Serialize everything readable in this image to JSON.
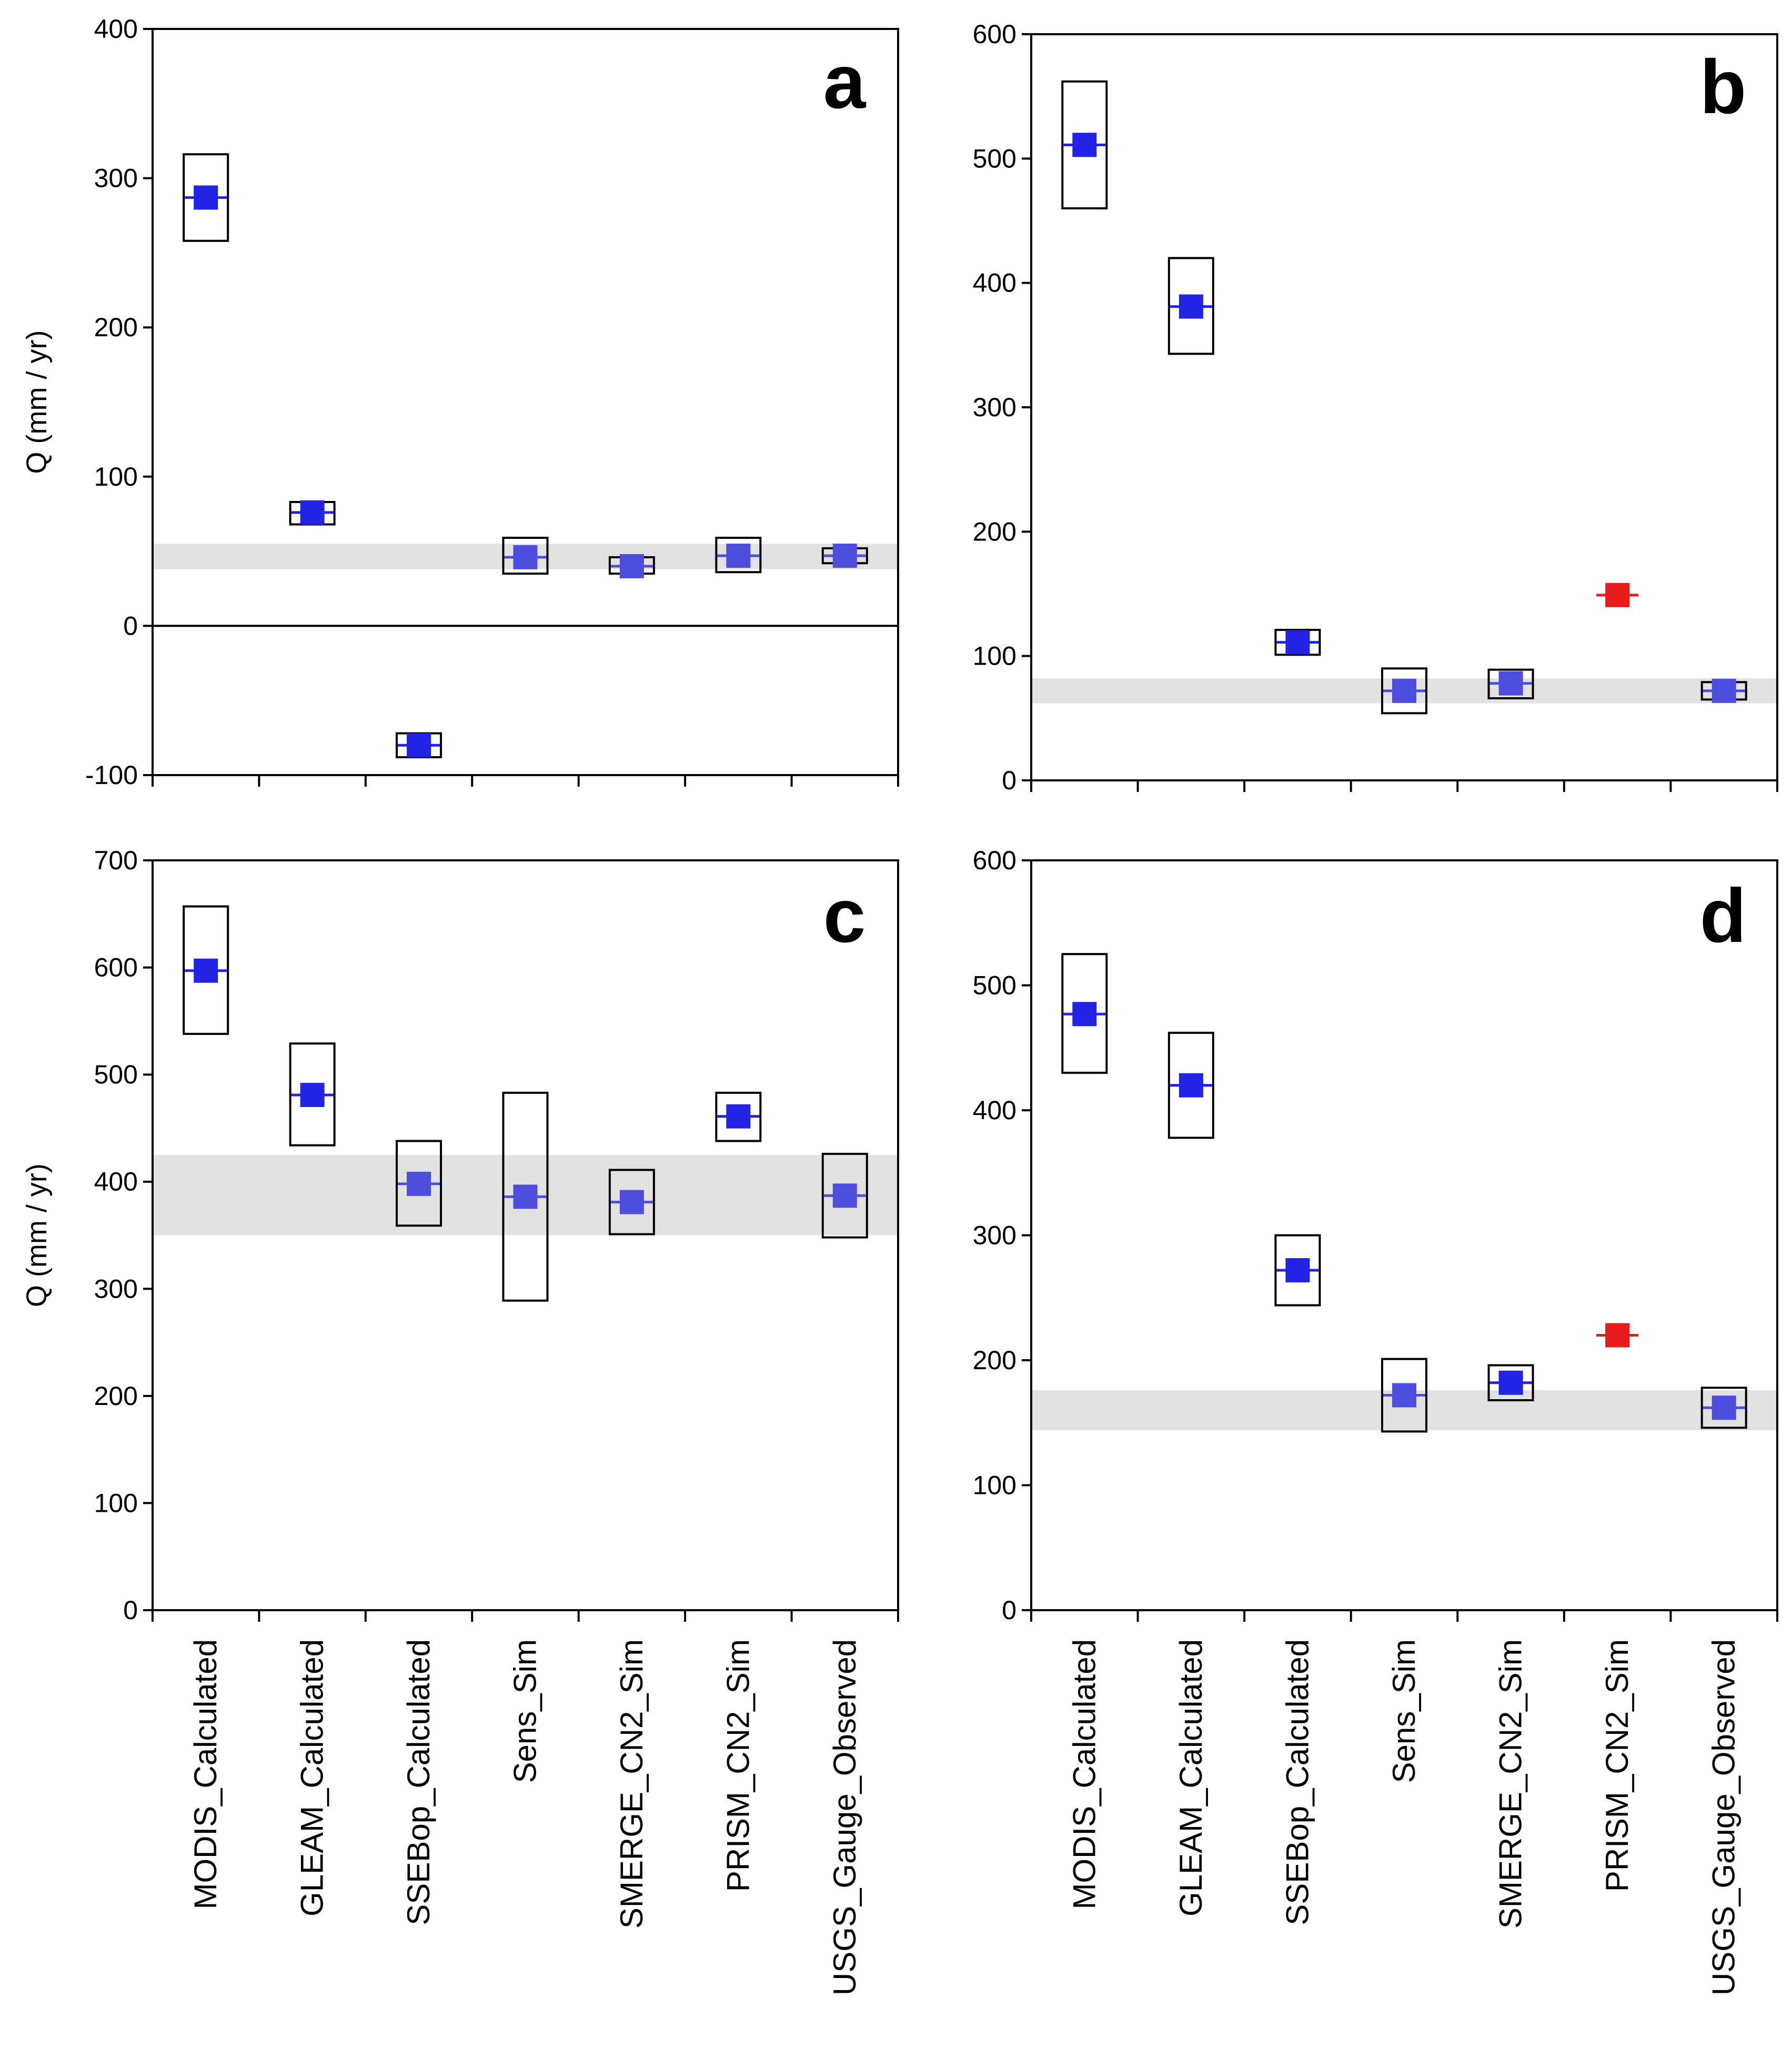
{
  "figure": {
    "categories": [
      "MODIS_Calculated",
      "GLEAM_Calculated",
      "SSEBop_Calculated",
      "Sens_Sim",
      "SMERGE_CN2_Sim",
      "PRISM_CN2_Sim",
      "USGS_Gauge_Observed"
    ],
    "colors": {
      "marker": "#2323e6",
      "marker_light": "#4d4dde",
      "marker_red": "#e81c1c",
      "band": "#e2e2e2",
      "frame": "#000000"
    }
  },
  "chart_data": [
    {
      "type": "scatter",
      "panel": "a",
      "title": "a",
      "ylabel": "Q (mm / yr)",
      "xlabel": "",
      "ylim": [
        -100,
        400
      ],
      "yticks": [
        -100,
        0,
        100,
        200,
        300,
        400
      ],
      "zero_line": true,
      "band": [
        38,
        55
      ],
      "categories": [
        "MODIS_Calculated",
        "GLEAM_Calculated",
        "SSEBop_Calculated",
        "Sens_Sim",
        "SMERGE_CN2_Sim",
        "PRISM_CN2_Sim",
        "USGS_Gauge_Observed"
      ],
      "points": [
        {
          "category": "MODIS_Calculated",
          "value": 287,
          "box": [
            258,
            316
          ],
          "color": "blue"
        },
        {
          "category": "GLEAM_Calculated",
          "value": 76,
          "box": [
            68,
            83
          ],
          "color": "blue"
        },
        {
          "category": "SSEBop_Calculated",
          "value": -80,
          "box": [
            -88,
            -72
          ],
          "color": "blue"
        },
        {
          "category": "Sens_Sim",
          "value": 46,
          "box": [
            35,
            59
          ],
          "color": "light"
        },
        {
          "category": "SMERGE_CN2_Sim",
          "value": 40,
          "box": [
            35,
            46
          ],
          "color": "light"
        },
        {
          "category": "PRISM_CN2_Sim",
          "value": 47,
          "box": [
            36,
            59
          ],
          "color": "light"
        },
        {
          "category": "USGS_Gauge_Observed",
          "value": 47,
          "box": [
            42,
            52
          ],
          "color": "light"
        }
      ]
    },
    {
      "type": "scatter",
      "panel": "b",
      "title": "b",
      "ylabel": "",
      "xlabel": "",
      "ylim": [
        0,
        600
      ],
      "yticks": [
        0,
        100,
        200,
        300,
        400,
        500,
        600
      ],
      "zero_line": false,
      "band": [
        62,
        82
      ],
      "categories": [
        "MODIS_Calculated",
        "GLEAM_Calculated",
        "SSEBop_Calculated",
        "Sens_Sim",
        "SMERGE_CN2_Sim",
        "PRISM_CN2_Sim",
        "USGS_Gauge_Observed"
      ],
      "points": [
        {
          "category": "MODIS_Calculated",
          "value": 511,
          "box": [
            460,
            562
          ],
          "color": "blue"
        },
        {
          "category": "GLEAM_Calculated",
          "value": 381,
          "box": [
            343,
            420
          ],
          "color": "blue"
        },
        {
          "category": "SSEBop_Calculated",
          "value": 111,
          "box": [
            101,
            121
          ],
          "color": "blue"
        },
        {
          "category": "Sens_Sim",
          "value": 72,
          "box": [
            54,
            90
          ],
          "color": "light"
        },
        {
          "category": "SMERGE_CN2_Sim",
          "value": 78,
          "box": [
            66,
            89
          ],
          "color": "light"
        },
        {
          "category": "PRISM_CN2_Sim",
          "value": 149,
          "box": null,
          "color": "red"
        },
        {
          "category": "USGS_Gauge_Observed",
          "value": 72,
          "box": [
            65,
            79
          ],
          "color": "light"
        }
      ]
    },
    {
      "type": "scatter",
      "panel": "c",
      "title": "c",
      "ylabel": "Q (mm / yr)",
      "xlabel": "",
      "ylim": [
        0,
        700
      ],
      "yticks": [
        0,
        100,
        200,
        300,
        400,
        500,
        600,
        700
      ],
      "zero_line": false,
      "band": [
        350,
        425
      ],
      "categories": [
        "MODIS_Calculated",
        "GLEAM_Calculated",
        "SSEBop_Calculated",
        "Sens_Sim",
        "SMERGE_CN2_Sim",
        "PRISM_CN2_Sim",
        "USGS_Gauge_Observed"
      ],
      "points": [
        {
          "category": "MODIS_Calculated",
          "value": 597,
          "box": [
            538,
            657
          ],
          "color": "blue"
        },
        {
          "category": "GLEAM_Calculated",
          "value": 481,
          "box": [
            434,
            529
          ],
          "color": "blue"
        },
        {
          "category": "SSEBop_Calculated",
          "value": 398,
          "box": [
            359,
            438
          ],
          "color": "light"
        },
        {
          "category": "Sens_Sim",
          "value": 386,
          "box": [
            289,
            483
          ],
          "color": "light"
        },
        {
          "category": "SMERGE_CN2_Sim",
          "value": 381,
          "box": [
            351,
            411
          ],
          "color": "light"
        },
        {
          "category": "PRISM_CN2_Sim",
          "value": 461,
          "box": [
            438,
            483
          ],
          "color": "blue"
        },
        {
          "category": "USGS_Gauge_Observed",
          "value": 387,
          "box": [
            348,
            426
          ],
          "color": "light"
        }
      ]
    },
    {
      "type": "scatter",
      "panel": "d",
      "title": "d",
      "ylabel": "",
      "xlabel": "",
      "ylim": [
        0,
        600
      ],
      "yticks": [
        0,
        100,
        200,
        300,
        400,
        500,
        600
      ],
      "zero_line": false,
      "band": [
        144,
        176
      ],
      "categories": [
        "MODIS_Calculated",
        "GLEAM_Calculated",
        "SSEBop_Calculated",
        "Sens_Sim",
        "SMERGE_CN2_Sim",
        "PRISM_CN2_Sim",
        "USGS_Gauge_Observed"
      ],
      "points": [
        {
          "category": "MODIS_Calculated",
          "value": 477,
          "box": [
            430,
            525
          ],
          "color": "blue"
        },
        {
          "category": "GLEAM_Calculated",
          "value": 420,
          "box": [
            378,
            462
          ],
          "color": "blue"
        },
        {
          "category": "SSEBop_Calculated",
          "value": 272,
          "box": [
            244,
            300
          ],
          "color": "blue"
        },
        {
          "category": "Sens_Sim",
          "value": 172,
          "box": [
            143,
            201
          ],
          "color": "light"
        },
        {
          "category": "SMERGE_CN2_Sim",
          "value": 182,
          "box": [
            168,
            196
          ],
          "color": "blue"
        },
        {
          "category": "PRISM_CN2_Sim",
          "value": 220,
          "box": null,
          "color": "red"
        },
        {
          "category": "USGS_Gauge_Observed",
          "value": 162,
          "box": [
            146,
            178
          ],
          "color": "light"
        }
      ]
    }
  ]
}
